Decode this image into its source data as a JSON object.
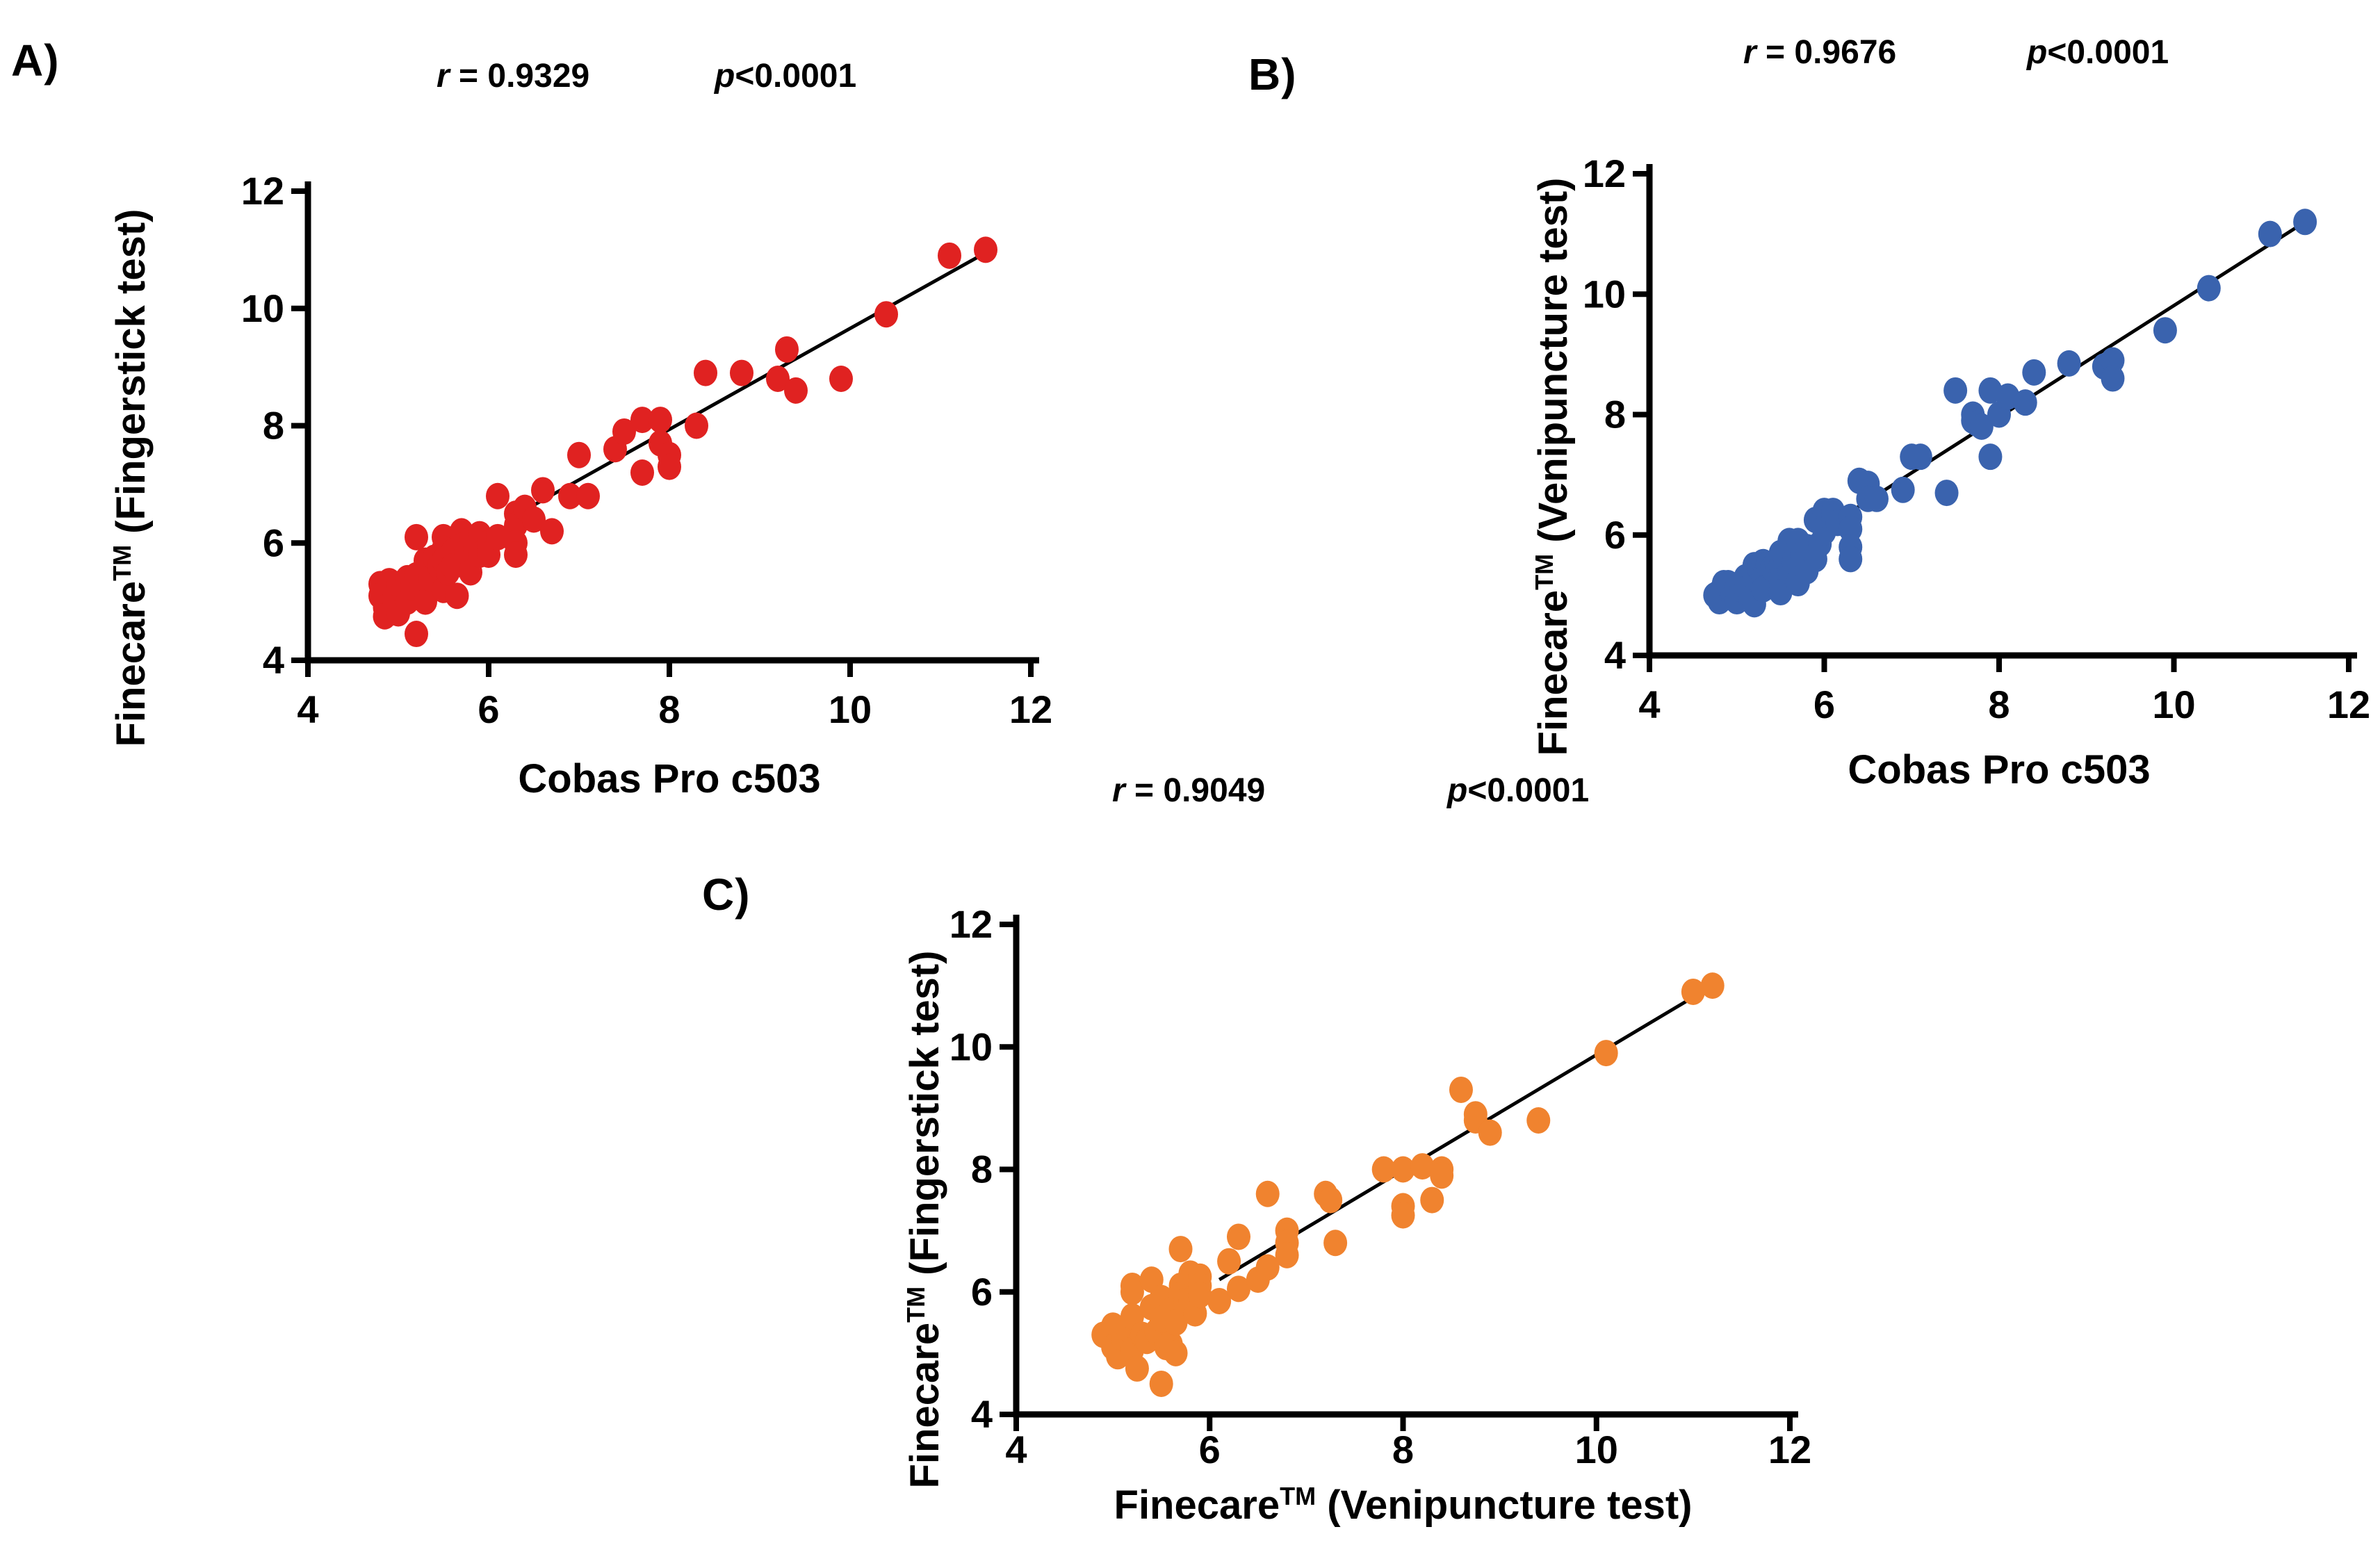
{
  "figure": {
    "background_color": "#FFFFFF",
    "text_color": "#000000"
  },
  "chart_data": [
    {
      "id": "A",
      "type": "scatter",
      "panel_label": "A)",
      "stats": {
        "r_letter": "r",
        "r_value": " = 0.9329",
        "p_letter": "p",
        "p_value": "<0.0001"
      },
      "x_axis": {
        "title_pre": "Cobas Pro c503",
        "title_sup": "",
        "title_post": "",
        "min": 4,
        "max": 12,
        "ticks": [
          4,
          6,
          8,
          10,
          12
        ]
      },
      "y_axis": {
        "title_pre": "Finecare",
        "title_sup": "TM",
        "title_post": " (Fingerstick test)",
        "min": 4,
        "max": 12,
        "ticks": [
          4,
          6,
          8,
          10,
          12
        ]
      },
      "point_color": "#E02221",
      "axis_color": "#000000",
      "regression_line": {
        "color": "#000000",
        "x1": 6.33,
        "y1": 6.5,
        "x2": 11.5,
        "y2": 10.95
      },
      "points": [
        [
          4.8,
          5.3
        ],
        [
          4.8,
          5.1
        ],
        [
          4.85,
          4.9
        ],
        [
          4.85,
          4.75
        ],
        [
          4.9,
          5.35
        ],
        [
          4.95,
          5.05
        ],
        [
          5.0,
          5.3
        ],
        [
          5.0,
          4.8
        ],
        [
          5.05,
          5.2
        ],
        [
          5.1,
          5.4
        ],
        [
          5.1,
          5.0
        ],
        [
          5.15,
          5.25
        ],
        [
          5.2,
          6.1
        ],
        [
          5.2,
          5.45
        ],
        [
          5.2,
          4.45
        ],
        [
          5.25,
          5.25
        ],
        [
          5.3,
          5.7
        ],
        [
          5.3,
          5.55
        ],
        [
          5.3,
          5.0
        ],
        [
          5.35,
          5.4
        ],
        [
          5.4,
          5.75
        ],
        [
          5.45,
          5.6
        ],
        [
          5.5,
          6.1
        ],
        [
          5.5,
          5.9
        ],
        [
          5.5,
          5.7
        ],
        [
          5.5,
          5.2
        ],
        [
          5.55,
          5.5
        ],
        [
          5.6,
          5.85
        ],
        [
          5.6,
          5.6
        ],
        [
          5.65,
          5.1
        ],
        [
          5.7,
          6.2
        ],
        [
          5.7,
          5.95
        ],
        [
          5.7,
          5.65
        ],
        [
          5.75,
          5.85
        ],
        [
          5.8,
          6.05
        ],
        [
          5.8,
          5.5
        ],
        [
          5.85,
          5.9
        ],
        [
          5.9,
          6.15
        ],
        [
          5.9,
          5.8
        ],
        [
          6.0,
          6.0
        ],
        [
          6.0,
          5.8
        ],
        [
          6.1,
          6.8
        ],
        [
          6.1,
          6.1
        ],
        [
          6.3,
          6.5
        ],
        [
          6.3,
          6.3
        ],
        [
          6.3,
          6.0
        ],
        [
          6.3,
          5.8
        ],
        [
          6.4,
          6.6
        ],
        [
          6.5,
          6.4
        ],
        [
          6.6,
          6.9
        ],
        [
          6.7,
          6.2
        ],
        [
          6.9,
          6.8
        ],
        [
          7.0,
          7.5
        ],
        [
          7.1,
          6.8
        ],
        [
          7.4,
          7.6
        ],
        [
          7.5,
          7.9
        ],
        [
          7.7,
          8.1
        ],
        [
          7.7,
          7.2
        ],
        [
          7.9,
          8.1
        ],
        [
          7.9,
          7.7
        ],
        [
          8.0,
          7.5
        ],
        [
          8.0,
          7.3
        ],
        [
          8.3,
          8.0
        ],
        [
          8.4,
          8.9
        ],
        [
          8.8,
          8.9
        ],
        [
          9.2,
          8.8
        ],
        [
          9.3,
          9.3
        ],
        [
          9.4,
          8.6
        ],
        [
          9.9,
          8.8
        ],
        [
          10.4,
          9.9
        ],
        [
          11.1,
          10.9
        ],
        [
          11.5,
          11.0
        ]
      ]
    },
    {
      "id": "B",
      "type": "scatter",
      "panel_label": "B)",
      "stats": {
        "r_letter": "r",
        "r_value": " = 0.9676",
        "p_letter": "p",
        "p_value": "<0.0001"
      },
      "x_axis": {
        "title_pre": "Cobas Pro c503",
        "title_sup": "",
        "title_post": "",
        "min": 4,
        "max": 12,
        "ticks": [
          4,
          6,
          8,
          10,
          12
        ]
      },
      "y_axis": {
        "title_pre": "Finecare",
        "title_sup": "TM",
        "title_post": " (Venipuncture test)",
        "min": 4,
        "max": 12,
        "ticks": [
          4,
          6,
          8,
          10,
          12
        ]
      },
      "point_color": "#3A63AE",
      "axis_color": "#000000",
      "regression_line": {
        "color": "#000000",
        "x1": 6.1,
        "y1": 6.2,
        "x2": 11.5,
        "y2": 11.2
      },
      "points": [
        [
          4.75,
          5.0
        ],
        [
          4.8,
          5.05
        ],
        [
          4.8,
          4.9
        ],
        [
          4.85,
          5.2
        ],
        [
          4.9,
          5.2
        ],
        [
          4.95,
          5.0
        ],
        [
          5.0,
          5.15
        ],
        [
          5.0,
          4.9
        ],
        [
          5.05,
          5.1
        ],
        [
          5.1,
          5.3
        ],
        [
          5.1,
          5.1
        ],
        [
          5.15,
          4.95
        ],
        [
          5.2,
          5.5
        ],
        [
          5.2,
          5.3
        ],
        [
          5.2,
          4.85
        ],
        [
          5.25,
          5.45
        ],
        [
          5.3,
          5.55
        ],
        [
          5.3,
          5.3
        ],
        [
          5.3,
          5.1
        ],
        [
          5.35,
          5.5
        ],
        [
          5.4,
          5.45
        ],
        [
          5.45,
          5.55
        ],
        [
          5.5,
          5.7
        ],
        [
          5.5,
          5.5
        ],
        [
          5.5,
          5.25
        ],
        [
          5.5,
          5.05
        ],
        [
          5.55,
          5.6
        ],
        [
          5.6,
          5.9
        ],
        [
          5.6,
          5.4
        ],
        [
          5.65,
          5.55
        ],
        [
          5.7,
          5.9
        ],
        [
          5.7,
          5.2
        ],
        [
          5.75,
          5.65
        ],
        [
          5.8,
          5.8
        ],
        [
          5.8,
          5.4
        ],
        [
          5.85,
          5.75
        ],
        [
          5.9,
          6.25
        ],
        [
          5.9,
          5.6
        ],
        [
          5.95,
          5.85
        ],
        [
          6.0,
          6.4
        ],
        [
          6.0,
          6.05
        ],
        [
          6.05,
          6.3
        ],
        [
          6.1,
          6.4
        ],
        [
          6.1,
          6.3
        ],
        [
          6.15,
          6.2
        ],
        [
          6.3,
          6.3
        ],
        [
          6.3,
          6.1
        ],
        [
          6.3,
          5.8
        ],
        [
          6.3,
          5.6
        ],
        [
          6.4,
          6.9
        ],
        [
          6.5,
          6.85
        ],
        [
          6.5,
          6.6
        ],
        [
          6.6,
          6.6
        ],
        [
          6.9,
          6.75
        ],
        [
          7.0,
          7.3
        ],
        [
          7.1,
          7.3
        ],
        [
          7.4,
          6.7
        ],
        [
          7.5,
          8.4
        ],
        [
          7.7,
          8.0
        ],
        [
          7.7,
          7.9
        ],
        [
          7.75,
          7.85
        ],
        [
          7.8,
          7.8
        ],
        [
          7.9,
          8.4
        ],
        [
          7.9,
          7.3
        ],
        [
          8.0,
          8.0
        ],
        [
          8.1,
          8.3
        ],
        [
          8.3,
          8.2
        ],
        [
          8.4,
          8.7
        ],
        [
          8.8,
          8.85
        ],
        [
          9.2,
          8.8
        ],
        [
          9.3,
          8.9
        ],
        [
          9.3,
          8.6
        ],
        [
          9.9,
          9.4
        ],
        [
          10.4,
          10.1
        ],
        [
          11.1,
          11.0
        ],
        [
          11.5,
          11.2
        ]
      ]
    },
    {
      "id": "C",
      "type": "scatter",
      "panel_label": "C)",
      "stats": {
        "r_letter": "r",
        "r_value": " = 0.9049",
        "p_letter": "p",
        "p_value": "<0.0001"
      },
      "x_axis": {
        "title_pre": "Finecare",
        "title_sup": "TM",
        "title_post": " (Venipuncture test)",
        "min": 4,
        "max": 12,
        "ticks": [
          4,
          6,
          8,
          10,
          12
        ]
      },
      "y_axis": {
        "title_pre": "Finecare",
        "title_sup": "TM",
        "title_post": " (Fingerstick test)",
        "min": 4,
        "max": 12,
        "ticks": [
          4,
          6,
          8,
          10,
          12
        ]
      },
      "point_color": "#F0832F",
      "axis_color": "#000000",
      "regression_line": {
        "color": "#000000",
        "x1": 6.1,
        "y1": 6.2,
        "x2": 11.2,
        "y2": 11.0
      },
      "points": [
        [
          4.9,
          5.3
        ],
        [
          5.0,
          5.45
        ],
        [
          5.0,
          5.1
        ],
        [
          5.05,
          4.95
        ],
        [
          5.1,
          5.25
        ],
        [
          5.15,
          5.4
        ],
        [
          5.2,
          6.1
        ],
        [
          5.2,
          6.0
        ],
        [
          5.2,
          5.6
        ],
        [
          5.2,
          5.05
        ],
        [
          5.25,
          4.75
        ],
        [
          5.3,
          5.3
        ],
        [
          5.35,
          5.2
        ],
        [
          5.4,
          6.2
        ],
        [
          5.4,
          5.75
        ],
        [
          5.45,
          5.35
        ],
        [
          5.5,
          5.9
        ],
        [
          5.5,
          5.55
        ],
        [
          5.5,
          4.5
        ],
        [
          5.55,
          5.1
        ],
        [
          5.6,
          5.7
        ],
        [
          5.6,
          5.15
        ],
        [
          5.65,
          5.5
        ],
        [
          5.65,
          5.0
        ],
        [
          5.7,
          6.7
        ],
        [
          5.7,
          6.1
        ],
        [
          5.7,
          5.95
        ],
        [
          5.75,
          5.85
        ],
        [
          5.8,
          6.3
        ],
        [
          5.8,
          5.85
        ],
        [
          5.85,
          5.65
        ],
        [
          5.9,
          6.25
        ],
        [
          5.9,
          6.1
        ],
        [
          5.9,
          5.95
        ],
        [
          6.1,
          5.85
        ],
        [
          6.2,
          6.5
        ],
        [
          6.3,
          6.9
        ],
        [
          6.3,
          6.05
        ],
        [
          6.5,
          6.2
        ],
        [
          6.6,
          7.6
        ],
        [
          6.6,
          6.4
        ],
        [
          6.8,
          7.0
        ],
        [
          6.8,
          6.8
        ],
        [
          6.8,
          6.6
        ],
        [
          7.2,
          7.6
        ],
        [
          7.25,
          7.5
        ],
        [
          7.3,
          6.8
        ],
        [
          7.8,
          8.0
        ],
        [
          8.0,
          8.0
        ],
        [
          8.0,
          7.4
        ],
        [
          8.0,
          7.25
        ],
        [
          8.2,
          8.05
        ],
        [
          8.3,
          7.5
        ],
        [
          8.4,
          8.0
        ],
        [
          8.4,
          7.9
        ],
        [
          8.6,
          9.3
        ],
        [
          8.75,
          8.9
        ],
        [
          8.75,
          8.8
        ],
        [
          8.9,
          8.6
        ],
        [
          9.4,
          8.8
        ],
        [
          10.1,
          9.9
        ],
        [
          11.0,
          10.9
        ],
        [
          11.2,
          11.0
        ]
      ]
    }
  ]
}
